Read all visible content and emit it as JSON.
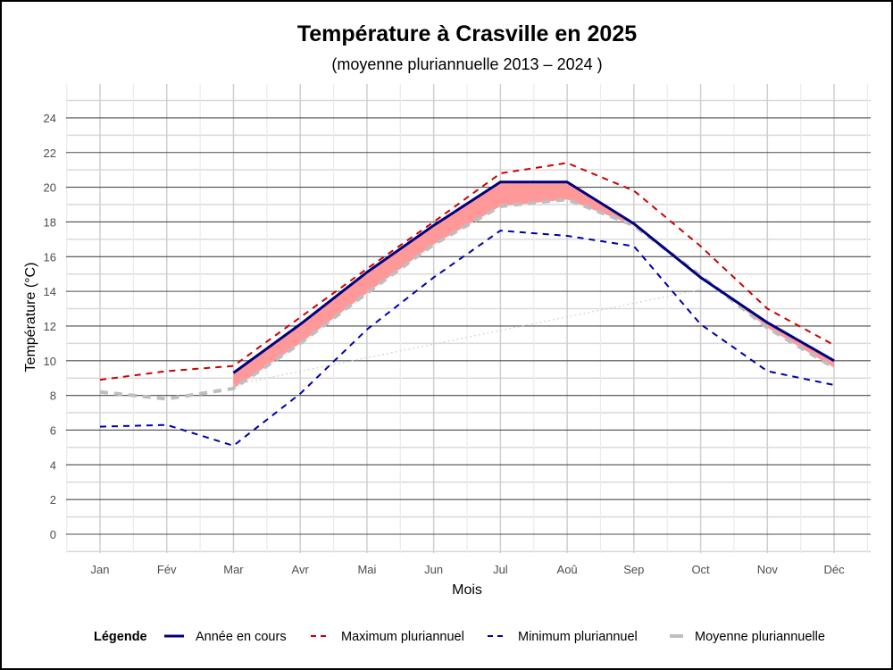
{
  "chart_data": {
    "type": "line",
    "title": "Température à Crasville en 2025",
    "subtitle": "(moyenne pluriannuelle 2013 – 2024 )",
    "xlabel": "Mois",
    "ylabel": "Température (°C)",
    "categories": [
      "Jan",
      "Fév",
      "Mar",
      "Avr",
      "Mai",
      "Jun",
      "Jul",
      "Aoû",
      "Sep",
      "Oct",
      "Nov",
      "Déc"
    ],
    "ylim": [
      -1,
      25.5
    ],
    "yticks": [
      0,
      2,
      4,
      6,
      8,
      10,
      12,
      14,
      16,
      18,
      20,
      22,
      24
    ],
    "grid": true,
    "legend": {
      "title": "Légende",
      "position": "bottom",
      "entries": [
        {
          "key": "current",
          "label": "Année en cours"
        },
        {
          "key": "max",
          "label": "Maximum pluriannuel"
        },
        {
          "key": "min",
          "label": "Minimum pluriannuel"
        },
        {
          "key": "mean",
          "label": "Moyenne pluriannuelle"
        }
      ]
    },
    "series": [
      {
        "key": "current",
        "name": "Année en cours",
        "color": "#000080",
        "style": "solid",
        "values": [
          null,
          null,
          9.3,
          12.1,
          15.1,
          17.8,
          20.3,
          20.3,
          17.9,
          14.8,
          12.2,
          10.0
        ]
      },
      {
        "key": "max",
        "name": "Maximum pluriannuel",
        "color": "#cc0000",
        "style": "dashed",
        "values": [
          8.9,
          9.4,
          9.7,
          12.5,
          15.3,
          18.0,
          20.8,
          21.4,
          19.8,
          16.6,
          13.0,
          10.9
        ]
      },
      {
        "key": "min",
        "name": "Minimum pluriannuel",
        "color": "#0000aa",
        "style": "dashed",
        "values": [
          6.2,
          6.3,
          5.1,
          8.1,
          11.8,
          14.8,
          17.5,
          17.2,
          16.6,
          12.1,
          9.4,
          8.6
        ]
      },
      {
        "key": "mean",
        "name": "Moyenne pluriannuelle",
        "color": "#bebebe",
        "style": "dashed-thick",
        "values": [
          8.2,
          7.8,
          8.4,
          11.0,
          13.9,
          16.7,
          18.9,
          19.3,
          17.8,
          14.9,
          11.9,
          9.6
        ]
      }
    ],
    "ribbon": {
      "between": [
        "mean",
        "current"
      ],
      "color": "#ff9999",
      "description": "Écart année en cours au-dessus de la moyenne"
    },
    "trend_line": {
      "color": "#c8c8c8",
      "style": "dotted",
      "from": {
        "month": "Mar",
        "value": 8.6
      },
      "to": {
        "month": "Oct",
        "value": 14.1
      }
    }
  }
}
